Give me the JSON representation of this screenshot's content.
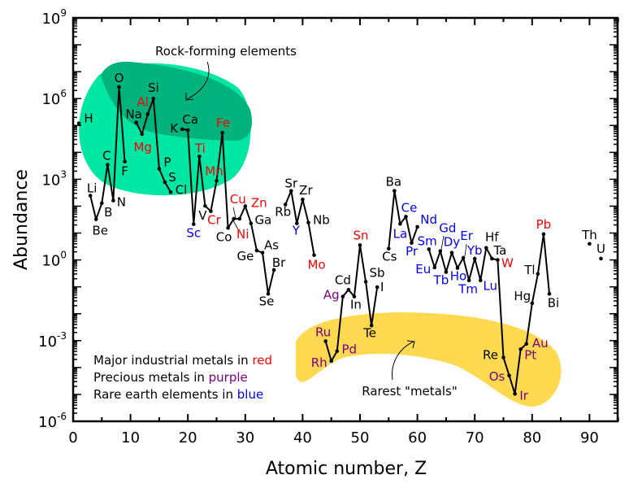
{
  "chart_data": {
    "type": "line",
    "xlabel": "Atomic number, Z",
    "ylabel": "Abundance",
    "xlim": [
      0,
      95
    ],
    "ylim_log10": [
      -6,
      9
    ],
    "x_ticks": [
      0,
      10,
      20,
      30,
      40,
      50,
      60,
      70,
      80,
      90
    ],
    "y_ticks": [
      {
        "base": "10",
        "exp": "9",
        "log": 9
      },
      {
        "base": "10",
        "exp": "6",
        "log": 6
      },
      {
        "base": "10",
        "exp": "3",
        "log": 3
      },
      {
        "base": "10",
        "exp": "0",
        "log": 0
      },
      {
        "base": "10",
        "exp": "-3",
        "log": -3
      },
      {
        "base": "10",
        "exp": "-6",
        "log": -6
      }
    ],
    "category_colors": {
      "normal": "#000000",
      "industrial": "#ff0000",
      "precious": "#800080",
      "rare_earth": "#0000ff"
    },
    "segments": [
      [
        1
      ],
      [
        3,
        4,
        5,
        6,
        7,
        8,
        9
      ],
      [
        11,
        12,
        13,
        14,
        15,
        16,
        17
      ],
      [
        19,
        20,
        21,
        22,
        23,
        24,
        25,
        26,
        27,
        28,
        29,
        30,
        31,
        32,
        33,
        34,
        35
      ],
      [
        37,
        38,
        39,
        40,
        41,
        42
      ],
      [
        44,
        45,
        46,
        47,
        48,
        49,
        50,
        51,
        52,
        53
      ],
      [
        55,
        56,
        57,
        58,
        59,
        60
      ],
      [
        62,
        63,
        64,
        65,
        66,
        67,
        68,
        69,
        70,
        71,
        72,
        73,
        74,
        75,
        76,
        77,
        78,
        79,
        80,
        81,
        82,
        83
      ],
      [
        90
      ],
      [
        92
      ]
    ],
    "elements": [
      {
        "z": 1,
        "sym": "H",
        "log": 5.08,
        "cat": "normal"
      },
      {
        "z": 3,
        "sym": "Li",
        "log": 2.39,
        "cat": "normal"
      },
      {
        "z": 4,
        "sym": "Be",
        "log": 1.51,
        "cat": "normal"
      },
      {
        "z": 5,
        "sym": "B",
        "log": 2.11,
        "cat": "normal"
      },
      {
        "z": 6,
        "sym": "C",
        "log": 3.54,
        "cat": "normal"
      },
      {
        "z": 7,
        "sym": "N",
        "log": 2.21,
        "cat": "normal"
      },
      {
        "z": 8,
        "sym": "O",
        "log": 6.43,
        "cat": "normal"
      },
      {
        "z": 9,
        "sym": "F",
        "log": 3.66,
        "cat": "normal"
      },
      {
        "z": 11,
        "sym": "Na",
        "log": 5.11,
        "cat": "normal"
      },
      {
        "z": 12,
        "sym": "Mg",
        "log": 4.68,
        "cat": "industrial"
      },
      {
        "z": 13,
        "sym": "Al",
        "log": 5.42,
        "cat": "industrial"
      },
      {
        "z": 14,
        "sym": "Si",
        "log": 6.0,
        "cat": "normal"
      },
      {
        "z": 15,
        "sym": "P",
        "log": 3.39,
        "cat": "normal"
      },
      {
        "z": 16,
        "sym": "S",
        "log": 2.89,
        "cat": "normal"
      },
      {
        "z": 17,
        "sym": "Cl",
        "log": 2.52,
        "cat": "normal"
      },
      {
        "z": 19,
        "sym": "K",
        "log": 4.86,
        "cat": "normal"
      },
      {
        "z": 20,
        "sym": "Ca",
        "log": 4.83,
        "cat": "normal"
      },
      {
        "z": 21,
        "sym": "Sc",
        "log": 1.33,
        "cat": "rare_earth"
      },
      {
        "z": 22,
        "sym": "Ti",
        "log": 3.85,
        "cat": "industrial"
      },
      {
        "z": 23,
        "sym": "V",
        "log": 2.01,
        "cat": "normal"
      },
      {
        "z": 24,
        "sym": "Cr",
        "log": 1.81,
        "cat": "industrial"
      },
      {
        "z": 25,
        "sym": "Mn",
        "log": 2.94,
        "cat": "industrial"
      },
      {
        "z": 26,
        "sym": "Fe",
        "log": 4.73,
        "cat": "industrial"
      },
      {
        "z": 27,
        "sym": "Co",
        "log": 1.19,
        "cat": "normal"
      },
      {
        "z": 28,
        "sym": "Ni",
        "log": 1.53,
        "cat": "industrial"
      },
      {
        "z": 29,
        "sym": "Cu",
        "log": 1.53,
        "cat": "industrial"
      },
      {
        "z": 30,
        "sym": "Zn",
        "log": 2.0,
        "cat": "industrial"
      },
      {
        "z": 31,
        "sym": "Ga",
        "log": 1.36,
        "cat": "normal"
      },
      {
        "z": 32,
        "sym": "Ge",
        "log": 0.35,
        "cat": "normal"
      },
      {
        "z": 33,
        "sym": "As",
        "log": 0.27,
        "cat": "normal"
      },
      {
        "z": 34,
        "sym": "Se",
        "log": -1.26,
        "cat": "normal"
      },
      {
        "z": 35,
        "sym": "Br",
        "log": -0.37,
        "cat": "normal"
      },
      {
        "z": 37,
        "sym": "Rb",
        "log": 2.06,
        "cat": "normal"
      },
      {
        "z": 38,
        "sym": "Sr",
        "log": 2.57,
        "cat": "normal"
      },
      {
        "z": 39,
        "sym": "Y",
        "log": 1.36,
        "cat": "rare_earth"
      },
      {
        "z": 40,
        "sym": "Zr",
        "log": 2.25,
        "cat": "normal"
      },
      {
        "z": 41,
        "sym": "Nb",
        "log": 1.39,
        "cat": "normal"
      },
      {
        "z": 42,
        "sym": "Mo",
        "log": 0.18,
        "cat": "industrial"
      },
      {
        "z": 44,
        "sym": "Ru",
        "log": -3.02,
        "cat": "precious"
      },
      {
        "z": 45,
        "sym": "Rh",
        "log": -3.76,
        "cat": "precious"
      },
      {
        "z": 46,
        "sym": "Pd",
        "log": -3.39,
        "cat": "precious"
      },
      {
        "z": 47,
        "sym": "Ag",
        "log": -1.36,
        "cat": "precious"
      },
      {
        "z": 48,
        "sym": "Cd",
        "log": -1.11,
        "cat": "normal"
      },
      {
        "z": 49,
        "sym": "In",
        "log": -1.36,
        "cat": "normal"
      },
      {
        "z": 50,
        "sym": "Sn",
        "log": 0.55,
        "cat": "industrial"
      },
      {
        "z": 51,
        "sym": "Sb",
        "log": -0.81,
        "cat": "normal"
      },
      {
        "z": 52,
        "sym": "Te",
        "log": -2.44,
        "cat": "normal"
      },
      {
        "z": 53,
        "sym": "I",
        "log": -1.01,
        "cat": "normal"
      },
      {
        "z": 55,
        "sym": "Cs",
        "log": 0.42,
        "cat": "normal"
      },
      {
        "z": 56,
        "sym": "Ba",
        "log": 2.57,
        "cat": "normal"
      },
      {
        "z": 57,
        "sym": "La",
        "log": 1.34,
        "cat": "rare_earth"
      },
      {
        "z": 58,
        "sym": "Ce",
        "log": 1.61,
        "cat": "rare_earth"
      },
      {
        "z": 59,
        "sym": "Pr",
        "log": 0.63,
        "cat": "rare_earth"
      },
      {
        "z": 60,
        "sym": "Nd",
        "log": 1.23,
        "cat": "rare_earth"
      },
      {
        "z": 62,
        "sym": "Sm",
        "log": 0.4,
        "cat": "rare_earth"
      },
      {
        "z": 63,
        "sym": "Eu",
        "log": -0.28,
        "cat": "rare_earth"
      },
      {
        "z": 64,
        "sym": "Gd",
        "log": 0.33,
        "cat": "rare_earth"
      },
      {
        "z": 65,
        "sym": "Tb",
        "log": -0.45,
        "cat": "rare_earth"
      },
      {
        "z": 66,
        "sym": "Dy",
        "log": 0.27,
        "cat": "rare_earth"
      },
      {
        "z": 67,
        "sym": "Ho",
        "log": -0.3,
        "cat": "rare_earth"
      },
      {
        "z": 68,
        "sym": "Er",
        "log": 0.08,
        "cat": "rare_earth"
      },
      {
        "z": 69,
        "sym": "Tm",
        "log": -0.76,
        "cat": "rare_earth"
      },
      {
        "z": 70,
        "sym": "Yb",
        "log": 0.05,
        "cat": "rare_earth"
      },
      {
        "z": 71,
        "sym": "Lu",
        "log": -0.76,
        "cat": "rare_earth"
      },
      {
        "z": 72,
        "sym": "Hf",
        "log": 0.45,
        "cat": "normal"
      },
      {
        "z": 73,
        "sym": "Ta",
        "log": 0.05,
        "cat": "normal"
      },
      {
        "z": 74,
        "sym": "W",
        "log": 0.0,
        "cat": "industrial"
      },
      {
        "z": 75,
        "sym": "Re",
        "log": -3.63,
        "cat": "normal"
      },
      {
        "z": 76,
        "sym": "Os",
        "log": -4.3,
        "cat": "precious"
      },
      {
        "z": 77,
        "sym": "Ir",
        "log": -4.98,
        "cat": "precious"
      },
      {
        "z": 78,
        "sym": "Pt",
        "log": -3.32,
        "cat": "precious"
      },
      {
        "z": 79,
        "sym": "Au",
        "log": -3.12,
        "cat": "precious"
      },
      {
        "z": 80,
        "sym": "Hg",
        "log": -1.61,
        "cat": "normal"
      },
      {
        "z": 81,
        "sym": "Tl",
        "log": -0.52,
        "cat": "normal"
      },
      {
        "z": 82,
        "sym": "Pb",
        "log": 0.96,
        "cat": "industrial"
      },
      {
        "z": 83,
        "sym": "Bi",
        "log": -1.26,
        "cat": "normal"
      },
      {
        "z": 90,
        "sym": "Th",
        "log": 0.6,
        "cat": "normal"
      },
      {
        "z": 92,
        "sym": "U",
        "log": 0.05,
        "cat": "normal"
      }
    ],
    "annotations": {
      "rock_forming": "Rock-forming elements",
      "rarest": "Rarest \"metals\""
    },
    "legend": [
      {
        "prefix": "Major industrial metals in ",
        "word": "red",
        "color": "#ff0000"
      },
      {
        "prefix": "Precious metals in ",
        "word": "purple",
        "color": "#800080"
      },
      {
        "prefix": "Rare earth elements in ",
        "word": "blue",
        "color": "#0000ff"
      }
    ],
    "region_colors": {
      "rock_light": "#00e6a3",
      "rock_dark": "#00b37d",
      "rare": "#ffd94f"
    }
  }
}
